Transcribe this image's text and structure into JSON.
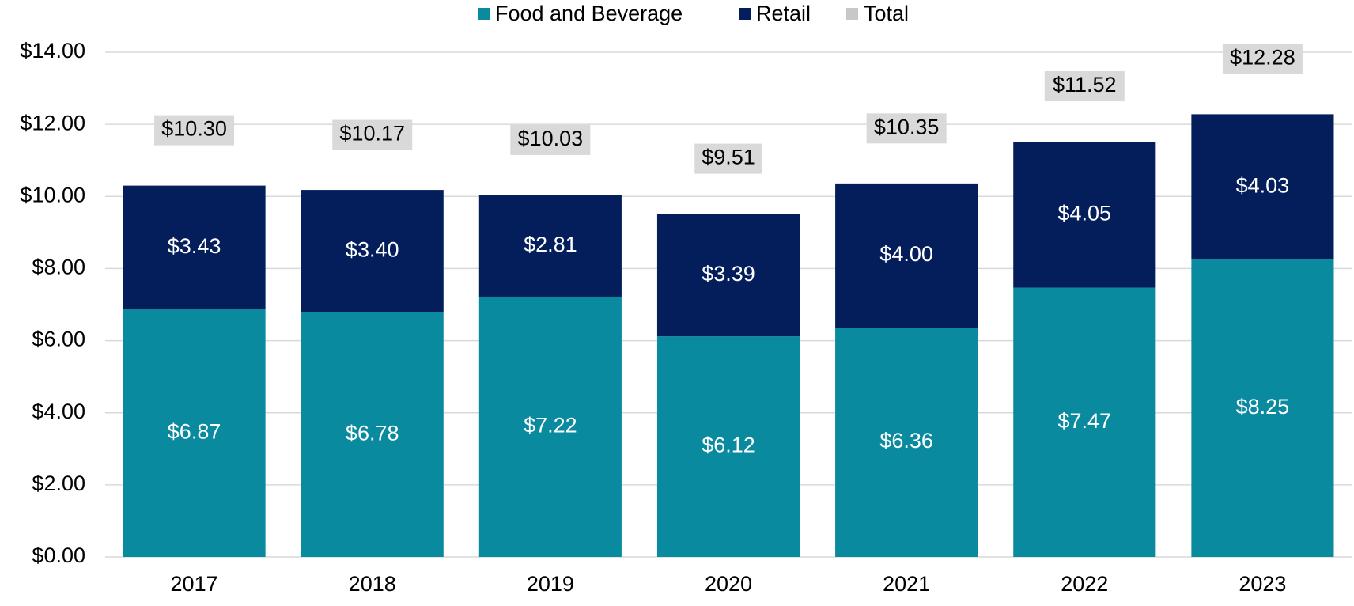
{
  "chart_data": {
    "type": "stacked_bar",
    "categories": [
      "2017",
      "2018",
      "2019",
      "2020",
      "2021",
      "2022",
      "2023"
    ],
    "series": [
      {
        "name": "Food and Beverage",
        "color": "#0a8a9f",
        "values": [
          6.87,
          6.78,
          7.22,
          6.12,
          6.36,
          7.47,
          8.25
        ],
        "value_labels": [
          "$6.87",
          "$6.78",
          "$7.22",
          "$6.12",
          "$6.36",
          "$7.47",
          "$8.25"
        ]
      },
      {
        "name": "Retail",
        "color": "#031e5b",
        "values": [
          3.43,
          3.4,
          2.81,
          3.39,
          4.0,
          4.05,
          4.03
        ],
        "value_labels": [
          "$3.43",
          "$3.40",
          "$2.81",
          "$3.39",
          "$4.00",
          "$4.05",
          "$4.03"
        ]
      },
      {
        "name": "Total",
        "color": "#c8c8c8",
        "label_background": "#d9d9d9",
        "values": [
          10.3,
          10.17,
          10.03,
          9.51,
          10.35,
          11.52,
          12.28
        ],
        "value_labels": [
          "$10.30",
          "$10.17",
          "$10.03",
          "$9.51",
          "$10.35",
          "$11.52",
          "$12.28"
        ]
      }
    ],
    "ylim": [
      0,
      14
    ],
    "yticks": [
      {
        "value": 0,
        "label": "$0.00"
      },
      {
        "value": 2,
        "label": "$2.00"
      },
      {
        "value": 4,
        "label": "$4.00"
      },
      {
        "value": 6,
        "label": "$6.00"
      },
      {
        "value": 8,
        "label": "$8.00"
      },
      {
        "value": 10,
        "label": "$10.00"
      },
      {
        "value": 12,
        "label": "$12.00"
      },
      {
        "value": 14,
        "label": "$14.00"
      }
    ],
    "grid": true,
    "legend": "top"
  }
}
